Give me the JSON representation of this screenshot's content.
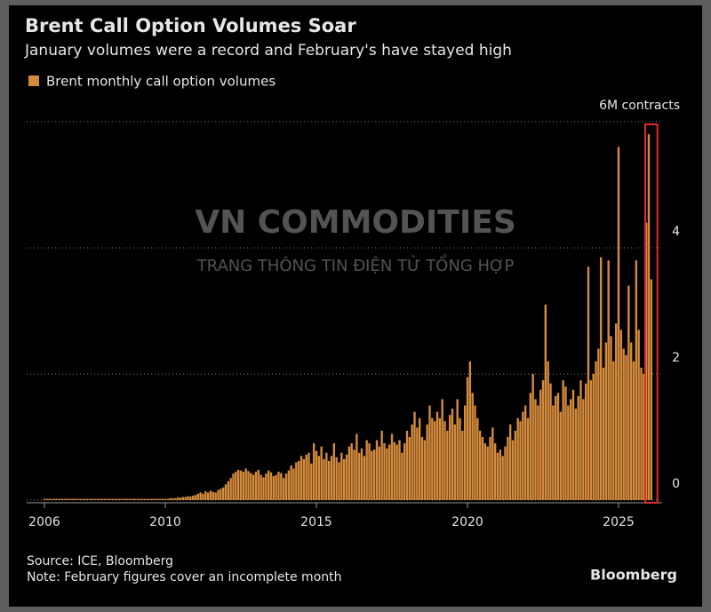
{
  "chart_data": {
    "type": "bar",
    "title": "Brent Call Option Volumes Soar",
    "subtitle": "January volumes were a record and February's have stayed high",
    "source": "Source: ICE, Bloomberg",
    "note": "Note: February figures cover an incomplete month",
    "brand": "Bloomberg",
    "ylim": [
      0,
      6
    ],
    "yticks": [
      0,
      2,
      4,
      {
        "value": 6,
        "label": "6M contracts"
      }
    ],
    "grid": true,
    "categories": [
      "2006",
      null,
      null,
      null,
      null,
      null,
      null,
      null,
      null,
      null,
      null,
      null,
      null,
      null,
      null,
      null,
      null,
      null,
      null,
      null,
      null,
      null,
      null,
      null,
      null,
      null,
      null,
      null,
      null,
      null,
      null,
      null,
      null,
      null,
      null,
      null,
      null,
      null,
      null,
      null,
      null,
      null,
      null,
      null,
      null,
      null,
      null,
      null,
      "2010",
      null,
      null,
      null,
      null,
      null,
      null,
      null,
      null,
      null,
      null,
      null,
      null,
      null,
      null,
      null,
      null,
      null,
      null,
      null,
      null,
      null,
      null,
      null,
      null,
      null,
      null,
      null,
      null,
      null,
      null,
      null,
      null,
      null,
      null,
      null,
      null,
      null,
      null,
      null,
      null,
      null,
      null,
      null,
      null,
      null,
      null,
      null,
      null,
      null,
      null,
      null,
      null,
      null,
      null,
      null,
      null,
      null,
      null,
      null,
      "2015",
      null,
      null,
      null,
      null,
      null,
      null,
      null,
      null,
      null,
      null,
      null,
      null,
      null,
      null,
      null,
      null,
      null,
      null,
      null,
      null,
      null,
      null,
      null,
      null,
      null,
      null,
      null,
      null,
      null,
      null,
      null,
      null,
      null,
      null,
      null,
      null,
      null,
      null,
      null,
      null,
      null,
      null,
      null,
      null,
      null,
      null,
      null,
      null,
      null,
      null,
      null,
      null,
      null,
      null,
      null,
      null,
      null,
      null,
      null,
      "2020",
      null,
      null,
      null,
      null,
      null,
      null,
      null,
      null,
      null,
      null,
      null,
      null,
      null,
      null,
      null,
      null,
      null,
      null,
      null,
      null,
      null,
      null,
      null,
      null,
      null,
      null,
      null,
      null,
      null,
      null,
      null,
      null,
      null,
      null,
      null,
      null,
      null,
      null,
      null,
      null,
      null,
      null,
      null,
      null,
      null,
      null,
      null,
      null,
      null,
      null,
      null,
      null,
      null,
      null,
      null,
      null,
      null,
      null,
      null,
      "2025",
      null,
      null,
      null,
      null,
      null,
      null,
      null,
      null,
      null,
      null,
      null,
      null,
      null
    ],
    "series": [
      {
        "name": "Brent monthly call option volumes",
        "color": "#d58b3c",
        "values": [
          0.02,
          0.02,
          0.02,
          0.02,
          0.02,
          0.02,
          0.02,
          0.02,
          0.02,
          0.02,
          0.02,
          0.02,
          0.02,
          0.02,
          0.02,
          0.02,
          0.02,
          0.02,
          0.02,
          0.02,
          0.02,
          0.02,
          0.02,
          0.02,
          0.02,
          0.02,
          0.02,
          0.02,
          0.02,
          0.02,
          0.02,
          0.02,
          0.02,
          0.02,
          0.02,
          0.02,
          0.02,
          0.02,
          0.02,
          0.02,
          0.02,
          0.02,
          0.02,
          0.02,
          0.02,
          0.02,
          0.02,
          0.02,
          0.02,
          0.02,
          0.03,
          0.03,
          0.03,
          0.04,
          0.04,
          0.05,
          0.05,
          0.06,
          0.06,
          0.07,
          0.08,
          0.1,
          0.12,
          0.1,
          0.14,
          0.12,
          0.15,
          0.13,
          0.12,
          0.16,
          0.18,
          0.2,
          0.25,
          0.3,
          0.35,
          0.42,
          0.45,
          0.48,
          0.47,
          0.45,
          0.5,
          0.46,
          0.43,
          0.4,
          0.45,
          0.48,
          0.4,
          0.36,
          0.42,
          0.47,
          0.44,
          0.38,
          0.4,
          0.45,
          0.43,
          0.35,
          0.42,
          0.47,
          0.55,
          0.5,
          0.6,
          0.62,
          0.7,
          0.65,
          0.72,
          0.75,
          0.58,
          0.9,
          0.78,
          0.7,
          0.85,
          0.65,
          0.75,
          0.62,
          0.7,
          0.9,
          0.68,
          0.6,
          0.75,
          0.65,
          0.72,
          0.85,
          0.9,
          0.8,
          1.05,
          0.75,
          0.82,
          0.7,
          0.95,
          0.9,
          0.78,
          0.8,
          0.95,
          0.85,
          1.1,
          0.9,
          0.82,
          0.88,
          1.05,
          0.92,
          0.88,
          0.95,
          0.75,
          0.9,
          1.1,
          1.0,
          1.2,
          1.4,
          1.15,
          1.3,
          1.0,
          0.95,
          1.2,
          1.5,
          1.3,
          1.25,
          1.4,
          1.3,
          1.6,
          1.25,
          1.1,
          1.35,
          1.45,
          1.2,
          1.6,
          1.3,
          1.1,
          1.5,
          1.95,
          2.2,
          1.7,
          1.5,
          1.3,
          1.1,
          1.0,
          0.9,
          0.85,
          1.0,
          1.15,
          0.9,
          0.75,
          0.8,
          0.7,
          0.85,
          1.0,
          1.2,
          0.95,
          1.1,
          1.3,
          1.25,
          1.4,
          1.5,
          1.3,
          1.7,
          2.0,
          1.6,
          1.5,
          1.75,
          1.9,
          3.1,
          2.2,
          1.85,
          1.5,
          1.65,
          1.7,
          1.4,
          1.9,
          1.8,
          1.5,
          1.6,
          1.75,
          1.45,
          1.65,
          1.9,
          1.6,
          1.85,
          3.7,
          1.9,
          2.0,
          2.2,
          2.4,
          3.85,
          2.1,
          2.5,
          3.8,
          2.6,
          2.2,
          2.8,
          5.6,
          2.7,
          2.4,
          2.3,
          3.4,
          2.5,
          2.2,
          3.8,
          2.7,
          2.1,
          2.0,
          4.4,
          5.8,
          3.5
        ]
      }
    ]
  },
  "watermark": {
    "title": "VN COMMODITIES",
    "subtitle": "TRANG THÔNG TIN ĐIỆN TỬ TỔNG HỢP"
  }
}
